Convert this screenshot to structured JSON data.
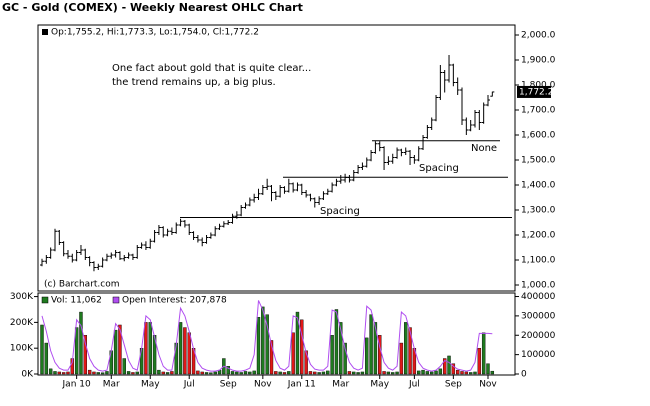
{
  "chart_data": [
    {
      "type": "ohlc",
      "title": "GC - Gold (COMEX) - Weekly Nearest OHLC Chart",
      "legend": "Op:1,755.2, Hi:1,773.3, Lo:1,754.0, Cl:1,772.2",
      "last_label": "1,772.2",
      "credit": "(c) Barchart.com",
      "color": "#000000",
      "annotations": [
        "One fact about gold that is quite clear...",
        "the trend remains up, a big plus.",
        "Spacing",
        "Spacing",
        "None"
      ],
      "levels": [
        1270,
        1431,
        1577
      ],
      "open": [
        1080,
        1095,
        1110,
        1140,
        1215,
        1170,
        1125,
        1115,
        1100,
        1130,
        1140,
        1110,
        1090,
        1070,
        1075,
        1100,
        1115,
        1120,
        1130,
        1105,
        1110,
        1120,
        1110,
        1150,
        1160,
        1150,
        1175,
        1210,
        1230,
        1200,
        1215,
        1210,
        1240,
        1255,
        1240,
        1210,
        1190,
        1180,
        1170,
        1190,
        1200,
        1225,
        1235,
        1245,
        1250,
        1275,
        1280,
        1310,
        1320,
        1340,
        1350,
        1365,
        1390,
        1395,
        1370,
        1355,
        1390,
        1375,
        1405,
        1380,
        1400,
        1370,
        1360,
        1345,
        1330,
        1345,
        1365,
        1375,
        1400,
        1415,
        1420,
        1430,
        1420,
        1450,
        1470,
        1475,
        1500,
        1530,
        1565,
        1550,
        1490,
        1495,
        1510,
        1540,
        1530,
        1535,
        1510,
        1500,
        1545,
        1590,
        1630,
        1660,
        1750,
        1850,
        1820,
        1880,
        1810,
        1780,
        1660,
        1620,
        1640,
        1690,
        1650,
        1720,
        1755.2
      ],
      "high": [
        1105,
        1120,
        1150,
        1225,
        1220,
        1175,
        1140,
        1125,
        1140,
        1160,
        1145,
        1115,
        1095,
        1085,
        1110,
        1125,
        1130,
        1140,
        1135,
        1120,
        1130,
        1125,
        1160,
        1170,
        1175,
        1185,
        1220,
        1240,
        1235,
        1225,
        1230,
        1250,
        1265,
        1260,
        1245,
        1215,
        1200,
        1190,
        1200,
        1210,
        1235,
        1245,
        1255,
        1260,
        1285,
        1295,
        1320,
        1330,
        1350,
        1365,
        1385,
        1400,
        1425,
        1400,
        1375,
        1400,
        1395,
        1425,
        1410,
        1410,
        1405,
        1380,
        1365,
        1350,
        1355,
        1375,
        1385,
        1410,
        1425,
        1440,
        1445,
        1440,
        1460,
        1480,
        1490,
        1510,
        1540,
        1575,
        1575,
        1555,
        1515,
        1525,
        1550,
        1545,
        1550,
        1540,
        1520,
        1555,
        1600,
        1640,
        1670,
        1760,
        1880,
        1860,
        1920,
        1885,
        1830,
        1790,
        1670,
        1660,
        1700,
        1700,
        1730,
        1760,
        1773.3
      ],
      "low": [
        1075,
        1085,
        1105,
        1135,
        1160,
        1115,
        1105,
        1090,
        1095,
        1120,
        1100,
        1075,
        1055,
        1060,
        1070,
        1095,
        1105,
        1110,
        1100,
        1095,
        1105,
        1100,
        1105,
        1145,
        1140,
        1145,
        1170,
        1200,
        1190,
        1195,
        1200,
        1205,
        1235,
        1230,
        1200,
        1180,
        1170,
        1155,
        1165,
        1185,
        1195,
        1220,
        1230,
        1240,
        1245,
        1265,
        1275,
        1305,
        1315,
        1330,
        1340,
        1360,
        1380,
        1335,
        1340,
        1350,
        1365,
        1370,
        1370,
        1375,
        1360,
        1350,
        1335,
        1310,
        1320,
        1340,
        1360,
        1370,
        1395,
        1405,
        1410,
        1410,
        1415,
        1445,
        1460,
        1470,
        1495,
        1525,
        1535,
        1460,
        1480,
        1485,
        1505,
        1515,
        1520,
        1480,
        1485,
        1495,
        1540,
        1585,
        1620,
        1655,
        1740,
        1770,
        1810,
        1795,
        1760,
        1640,
        1600,
        1615,
        1630,
        1620,
        1645,
        1715,
        1754.0
      ],
      "close": [
        1095,
        1110,
        1140,
        1215,
        1170,
        1125,
        1115,
        1100,
        1130,
        1140,
        1110,
        1090,
        1070,
        1075,
        1100,
        1115,
        1120,
        1130,
        1105,
        1110,
        1120,
        1110,
        1150,
        1160,
        1150,
        1175,
        1210,
        1230,
        1200,
        1215,
        1210,
        1240,
        1255,
        1240,
        1210,
        1190,
        1180,
        1170,
        1190,
        1200,
        1225,
        1235,
        1245,
        1250,
        1275,
        1280,
        1310,
        1320,
        1340,
        1350,
        1365,
        1390,
        1395,
        1370,
        1355,
        1390,
        1375,
        1405,
        1380,
        1400,
        1370,
        1360,
        1345,
        1330,
        1345,
        1365,
        1375,
        1400,
        1415,
        1420,
        1430,
        1420,
        1450,
        1470,
        1475,
        1500,
        1530,
        1565,
        1550,
        1490,
        1495,
        1510,
        1540,
        1530,
        1535,
        1510,
        1500,
        1545,
        1590,
        1630,
        1660,
        1750,
        1850,
        1820,
        1880,
        1810,
        1780,
        1660,
        1620,
        1640,
        1690,
        1650,
        1720,
        1740,
        1772.2
      ],
      "ylim": [
        976,
        2040
      ],
      "yticks": [
        {
          "value": 1000,
          "label": "1,000.0"
        },
        {
          "value": 1100,
          "label": "1,100.0"
        },
        {
          "value": 1200,
          "label": "1,200.0"
        },
        {
          "value": 1300,
          "label": "1,300.0"
        },
        {
          "value": 1400,
          "label": "1,400.0"
        },
        {
          "value": 1500,
          "label": "1,500.0"
        },
        {
          "value": 1600,
          "label": "1,600.0"
        },
        {
          "value": 1700,
          "label": "1,700.0"
        },
        {
          "value": 1800,
          "label": "1,800.0"
        },
        {
          "value": 1900,
          "label": "1,900.0"
        },
        {
          "value": 2000,
          "label": "2,000.0"
        }
      ]
    },
    {
      "type": "volume",
      "categories": [
        null,
        null,
        null,
        null,
        null,
        null,
        null,
        null,
        "Jan 10",
        null,
        null,
        null,
        null,
        null,
        null,
        null,
        "Mar",
        null,
        null,
        null,
        null,
        null,
        null,
        null,
        null,
        "May",
        null,
        null,
        null,
        null,
        null,
        null,
        null,
        null,
        "Jul",
        null,
        null,
        null,
        null,
        null,
        null,
        null,
        null,
        "Sep",
        null,
        null,
        null,
        null,
        null,
        null,
        null,
        "Nov",
        null,
        null,
        null,
        null,
        null,
        null,
        null,
        null,
        "Jan 11",
        null,
        null,
        null,
        null,
        null,
        null,
        null,
        null,
        "Mar",
        null,
        null,
        null,
        null,
        null,
        null,
        null,
        null,
        "May",
        null,
        null,
        null,
        null,
        null,
        null,
        null,
        "Jul",
        null,
        null,
        null,
        null,
        null,
        null,
        null,
        null,
        "Sep",
        null,
        null,
        null,
        null,
        null,
        null,
        null,
        "Nov",
        null
      ],
      "series": [
        {
          "name": "Vol: 11,062",
          "color": "#1f7a1f",
          "down_color": "#e01818",
          "values": [
            190000,
            120000,
            20000,
            10000,
            8000,
            6000,
            8000,
            60000,
            180000,
            240000,
            150000,
            15000,
            8000,
            6000,
            5000,
            10000,
            90000,
            170000,
            190000,
            60000,
            10000,
            6000,
            8000,
            100000,
            200000,
            200000,
            150000,
            15000,
            8000,
            6000,
            10000,
            120000,
            200000,
            180000,
            160000,
            100000,
            12000,
            8000,
            6000,
            5000,
            8000,
            15000,
            60000,
            30000,
            10000,
            8000,
            6000,
            10000,
            8000,
            12000,
            220000,
            260000,
            230000,
            130000,
            10000,
            8000,
            6000,
            10000,
            160000,
            240000,
            210000,
            90000,
            10000,
            8000,
            6000,
            8000,
            12000,
            150000,
            250000,
            200000,
            120000,
            10000,
            8000,
            6000,
            8000,
            140000,
            230000,
            200000,
            150000,
            10000,
            8000,
            6000,
            8000,
            120000,
            200000,
            180000,
            100000,
            12000,
            15000,
            10000,
            8000,
            12000,
            20000,
            60000,
            70000,
            40000,
            15000,
            10000,
            8000,
            6000,
            8000,
            100000,
            160000,
            40000,
            11062
          ]
        },
        {
          "name": "Open Interest: 207,878",
          "color": "#b04ef0",
          "axis": "y2",
          "values": [
            300000,
            220000,
            120000,
            60000,
            30000,
            20000,
            20000,
            60000,
            280000,
            250000,
            160000,
            80000,
            40000,
            20000,
            15000,
            20000,
            120000,
            260000,
            230000,
            150000,
            70000,
            30000,
            20000,
            130000,
            300000,
            280000,
            190000,
            100000,
            40000,
            20000,
            20000,
            150000,
            340000,
            300000,
            220000,
            130000,
            60000,
            30000,
            20000,
            15000,
            15000,
            20000,
            40000,
            30000,
            20000,
            15000,
            15000,
            20000,
            30000,
            100000,
            380000,
            330000,
            250000,
            150000,
            70000,
            30000,
            20000,
            40000,
            300000,
            290000,
            200000,
            110000,
            50000,
            25000,
            20000,
            20000,
            40000,
            330000,
            320000,
            230000,
            130000,
            60000,
            30000,
            20000,
            30000,
            350000,
            330000,
            240000,
            140000,
            60000,
            30000,
            20000,
            40000,
            320000,
            300000,
            220000,
            130000,
            60000,
            30000,
            20000,
            15000,
            20000,
            40000,
            70000,
            60000,
            40000,
            25000,
            20000,
            15000,
            20000,
            60000,
            210000,
            210000,
            210000,
            207878
          ]
        }
      ],
      "ylim": [
        0,
        310000
      ],
      "yticks": [
        {
          "value": 0,
          "label": "0K"
        },
        {
          "value": 100000,
          "label": "100K"
        },
        {
          "value": 200000,
          "label": "200K"
        },
        {
          "value": 300000,
          "label": "300K"
        }
      ],
      "y2lim": [
        0,
        413000
      ],
      "y2ticks": [
        0,
        100000,
        200000,
        300000,
        400000
      ]
    }
  ]
}
